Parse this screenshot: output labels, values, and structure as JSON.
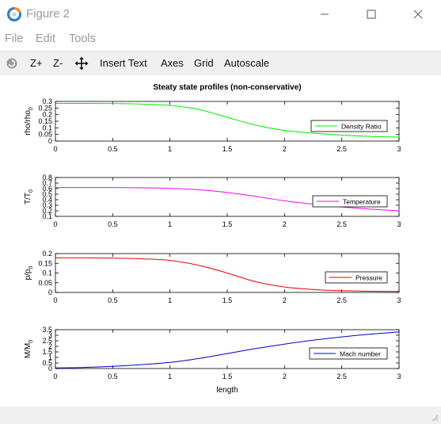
{
  "window": {
    "title": "Figure 2",
    "controls": {
      "minimize": "minimize",
      "maximize": "maximize",
      "close": "close"
    }
  },
  "menu": [
    "File",
    "Edit",
    "Tools"
  ],
  "toolbar": {
    "zoom_in": "Z+",
    "zoom_out": "Z-",
    "insert_text": "Insert Text",
    "axes": "Axes",
    "grid": "Grid",
    "autoscale": "Autoscale"
  },
  "figure": {
    "title": "Steaty state profiles (non-conservative)",
    "xlabel": "length"
  },
  "chart_data": [
    {
      "type": "line",
      "ylabel_main": "rho/rho",
      "ylabel_sub": "0",
      "xlim": [
        0,
        3
      ],
      "ylim": [
        0,
        0.3
      ],
      "xticks": [
        0,
        0.5,
        1,
        1.5,
        2,
        2.5,
        3
      ],
      "yticks": [
        0,
        0.05,
        0.1,
        0.15,
        0.2,
        0.25,
        0.3
      ],
      "xtick_labels": [
        "0",
        "0.5",
        "1",
        "1.5",
        "2",
        "2.5",
        "3"
      ],
      "ytick_labels": [
        "0",
        "0.05",
        "0.1",
        "0.15",
        "0.2",
        "0.25",
        "0.3"
      ],
      "series": [
        {
          "name": "Density Ratio",
          "color": "#00ee00",
          "x": [
            0,
            0.25,
            0.5,
            0.75,
            1.0,
            1.25,
            1.5,
            1.75,
            2.0,
            2.25,
            2.5,
            2.75,
            3.0
          ],
          "y": [
            0.285,
            0.285,
            0.284,
            0.28,
            0.27,
            0.24,
            0.18,
            0.12,
            0.08,
            0.06,
            0.045,
            0.035,
            0.03
          ]
        }
      ]
    },
    {
      "type": "line",
      "ylabel_main": "T/T",
      "ylabel_sub": "0",
      "xlim": [
        0,
        3
      ],
      "ylim": [
        0.1,
        0.8
      ],
      "xticks": [
        0,
        0.5,
        1,
        1.5,
        2,
        2.5,
        3
      ],
      "yticks": [
        0.1,
        0.2,
        0.3,
        0.4,
        0.5,
        0.6,
        0.7,
        0.8
      ],
      "xtick_labels": [
        "0",
        "0.5",
        "1",
        "1.5",
        "2",
        "2.5",
        "3"
      ],
      "ytick_labels": [
        "0.1",
        "0.2",
        "0.3",
        "0.4",
        "0.5",
        "0.6",
        "0.7",
        "0.8"
      ],
      "series": [
        {
          "name": "Temperature",
          "color": "#ff00ff",
          "x": [
            0,
            0.25,
            0.5,
            0.75,
            1.0,
            1.25,
            1.5,
            1.75,
            2.0,
            2.25,
            2.5,
            2.75,
            3.0
          ],
          "y": [
            0.62,
            0.62,
            0.62,
            0.615,
            0.605,
            0.58,
            0.53,
            0.46,
            0.38,
            0.32,
            0.27,
            0.23,
            0.2
          ]
        }
      ]
    },
    {
      "type": "line",
      "ylabel_main": "p/p",
      "ylabel_sub": "0",
      "xlim": [
        0,
        3
      ],
      "ylim": [
        0,
        0.2
      ],
      "xticks": [
        0,
        0.5,
        1,
        1.5,
        2,
        2.5,
        3
      ],
      "yticks": [
        0,
        0.05,
        0.1,
        0.15,
        0.2
      ],
      "xtick_labels": [
        "0",
        "0.5",
        "1",
        "1.5",
        "2",
        "2.5",
        "3"
      ],
      "ytick_labels": [
        "0",
        "0.05",
        "0.1",
        "0.15",
        "0.2"
      ],
      "series": [
        {
          "name": "Pressure",
          "color": "#ee0000",
          "x": [
            0,
            0.25,
            0.5,
            0.75,
            1.0,
            1.25,
            1.5,
            1.75,
            2.0,
            2.25,
            2.5,
            2.75,
            3.0
          ],
          "y": [
            0.178,
            0.178,
            0.177,
            0.173,
            0.165,
            0.14,
            0.1,
            0.055,
            0.028,
            0.015,
            0.009,
            0.006,
            0.005
          ]
        }
      ]
    },
    {
      "type": "line",
      "ylabel_main": "M/M",
      "ylabel_sub": "0",
      "xlim": [
        0,
        3
      ],
      "ylim": [
        0,
        3.5
      ],
      "xticks": [
        0,
        0.5,
        1,
        1.5,
        2,
        2.5,
        3
      ],
      "yticks": [
        0,
        0.5,
        1,
        1.5,
        2,
        2.5,
        3,
        3.5
      ],
      "xtick_labels": [
        "0",
        "0.5",
        "1",
        "1.5",
        "2",
        "2.5",
        "3"
      ],
      "ytick_labels": [
        "0",
        "0.5",
        "1",
        "1.5",
        "2",
        "2.5",
        "3",
        "3.5"
      ],
      "series": [
        {
          "name": "Mach number",
          "color": "#0000cc",
          "x": [
            0,
            0.25,
            0.5,
            0.75,
            1.0,
            1.25,
            1.5,
            1.75,
            2.0,
            2.25,
            2.5,
            2.75,
            3.0
          ],
          "y": [
            0.05,
            0.1,
            0.2,
            0.35,
            0.55,
            0.9,
            1.35,
            1.8,
            2.2,
            2.55,
            2.85,
            3.1,
            3.3
          ]
        }
      ]
    }
  ]
}
